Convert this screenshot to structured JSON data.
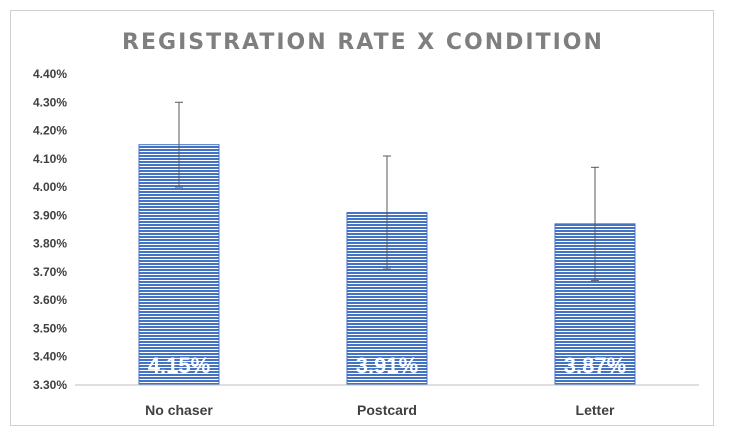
{
  "chart_data": {
    "type": "bar",
    "title": "REGISTRATION RATE X CONDITION",
    "categories": [
      "No chaser",
      "Postcard",
      "Letter"
    ],
    "values": [
      4.15,
      3.91,
      3.87
    ],
    "data_labels": [
      "4.15%",
      "3.91%",
      "3.87%"
    ],
    "error_bars": [
      {
        "low": 4.0,
        "high": 4.3
      },
      {
        "low": 3.71,
        "high": 4.11
      },
      {
        "low": 3.67,
        "high": 4.07
      }
    ],
    "ylim": [
      3.3,
      4.4
    ],
    "y_ticks": [
      3.3,
      3.4,
      3.5,
      3.6,
      3.7,
      3.8,
      3.9,
      4.0,
      4.1,
      4.2,
      4.3,
      4.4
    ],
    "y_tick_labels": [
      "3.30%",
      "3.40%",
      "3.50%",
      "3.60%",
      "3.70%",
      "3.80%",
      "3.90%",
      "4.00%",
      "4.10%",
      "4.20%",
      "4.30%",
      "4.40%"
    ],
    "xlabel": "",
    "ylabel": "",
    "grid": false,
    "legend": "none",
    "colors": {
      "bar_fill": "#4472c4",
      "bar_stripe": "#ffffff",
      "error_bar": "#595959",
      "axis": "#bfbfbf"
    }
  }
}
